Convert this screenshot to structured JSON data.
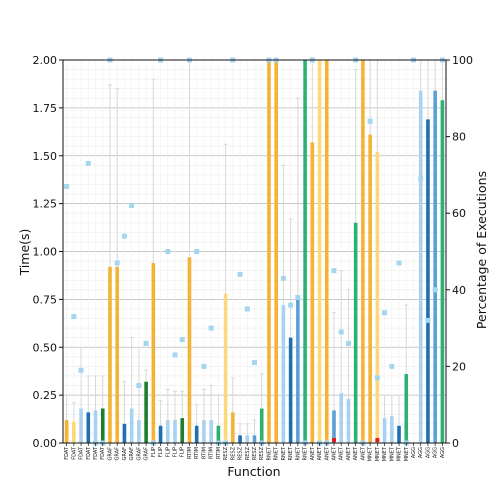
{
  "chart_data": {
    "type": "bar",
    "xlabel": "Function",
    "ylabel": "Time(s)",
    "y2label": "Percentage of Executions",
    "ylim": [
      0,
      2.0
    ],
    "y2lim": [
      0,
      100
    ],
    "yticks": [
      "0.00",
      "0.25",
      "0.50",
      "0.75",
      "1.00",
      "1.25",
      "1.50",
      "1.75",
      "2.00"
    ],
    "y2ticks": [
      "0",
      "20",
      "40",
      "60",
      "80",
      "100"
    ],
    "grid": true,
    "colors": {
      "orange": "#f5b335",
      "light_orange": "#fbd97a",
      "blue": "#1f6fb4",
      "light_blue": "#a8d2ef",
      "mid_blue": "#5b9fd6",
      "green": "#2db074",
      "dark_green": "#1a7f2e",
      "percent_marker": "#a5d5ef",
      "small_marker": "#e8141b",
      "error_bar": "#d8d8d8"
    },
    "categories": [
      "FDAT",
      "FDAT",
      "FDAT",
      "FDAT",
      "FDAT",
      "FDAT",
      "GRAF",
      "GRAF",
      "GRAF",
      "GRAF",
      "GRAF",
      "GRAF",
      "FLIP",
      "FLIP",
      "FLIP",
      "FLIP",
      "FLIP",
      "RTIM",
      "RTIM",
      "RTIM",
      "RTIM",
      "RTIM",
      "RESZ",
      "RESZ",
      "RESZ",
      "RESZ",
      "RESZ",
      "RESZ",
      "RNET",
      "RNET",
      "RNET",
      "RNET",
      "RNET",
      "RNET",
      "ANET",
      "ANET",
      "ANET",
      "ANET",
      "ANET",
      "ANET",
      "ANET",
      "ANET",
      "MNET",
      "MNET",
      "MNET",
      "MNET",
      "MNET",
      "MNET",
      "AGG",
      "AGG",
      "AGG",
      "AGG",
      "AGG"
    ],
    "values": [
      0.12,
      0.11,
      0.18,
      0.16,
      0.17,
      0.18,
      0.92,
      0.92,
      0.1,
      0.18,
      0.12,
      0.32,
      0.94,
      0.09,
      0.12,
      0.12,
      0.13,
      0.97,
      0.09,
      0.12,
      0.12,
      0.09,
      0.78,
      0.16,
      0.04,
      0.04,
      0.04,
      0.18,
      2.0,
      2.0,
      0.72,
      0.55,
      0.76,
      2.0,
      1.57,
      2.0,
      2.0,
      0.17,
      0.26,
      0.23,
      1.15,
      2.0,
      1.61,
      1.52,
      0.13,
      0.14,
      0.09,
      0.36,
      0.0,
      1.84,
      1.69,
      1.84,
      1.79
    ],
    "errors": [
      0.25,
      0.21,
      0.5,
      0.35,
      0.35,
      0.35,
      1.87,
      1.85,
      0.32,
      0.55,
      0.5,
      0.38,
      1.9,
      0.22,
      0.28,
      0.27,
      0.27,
      2.0,
      0.2,
      0.28,
      0.3,
      0.25,
      1.56,
      0.34,
      0.1,
      0.1,
      0.12,
      0.36,
      2.0,
      2.0,
      1.45,
      1.17,
      1.8,
      2.0,
      2.0,
      2.0,
      2.0,
      0.68,
      0.9,
      0.8,
      1.95,
      2.0,
      2.0,
      2.0,
      0.25,
      0.25,
      0.25,
      0.72,
      0.0,
      2.0,
      2.0,
      2.0,
      2.0
    ],
    "color_keys": [
      "orange",
      "light_orange",
      "light_blue",
      "blue",
      "light_blue",
      "dark_green",
      "orange",
      "orange",
      "blue",
      "light_blue",
      "light_blue",
      "dark_green",
      "orange",
      "blue",
      "light_blue",
      "light_blue",
      "dark_green",
      "orange",
      "blue",
      "light_blue",
      "light_blue",
      "green",
      "light_orange",
      "orange",
      "blue",
      "light_blue",
      "mid_blue",
      "green",
      "orange",
      "orange",
      "light_blue",
      "blue",
      "mid_blue",
      "green",
      "orange",
      "light_orange",
      "orange",
      "mid_blue",
      "light_blue",
      "light_blue",
      "green",
      "orange",
      "orange",
      "light_orange",
      "light_blue",
      "light_blue",
      "blue",
      "green",
      "light_blue",
      "light_blue",
      "blue",
      "mid_blue",
      "green"
    ],
    "percentages": [
      67,
      33,
      19,
      73,
      0,
      0,
      100,
      47,
      54,
      62,
      15,
      26,
      0,
      100,
      50,
      23,
      27,
      100,
      50,
      20,
      30,
      0,
      0,
      100,
      44,
      35,
      21,
      0,
      100,
      100,
      43,
      36,
      38,
      0,
      100,
      0,
      0,
      45,
      29,
      26,
      100,
      0,
      84,
      17,
      34,
      20,
      47,
      0,
      100,
      69,
      32,
      40,
      100
    ],
    "small_markers": [
      {
        "index": 37,
        "value": 0.01
      },
      {
        "index": 43,
        "value": 0.01
      }
    ]
  }
}
